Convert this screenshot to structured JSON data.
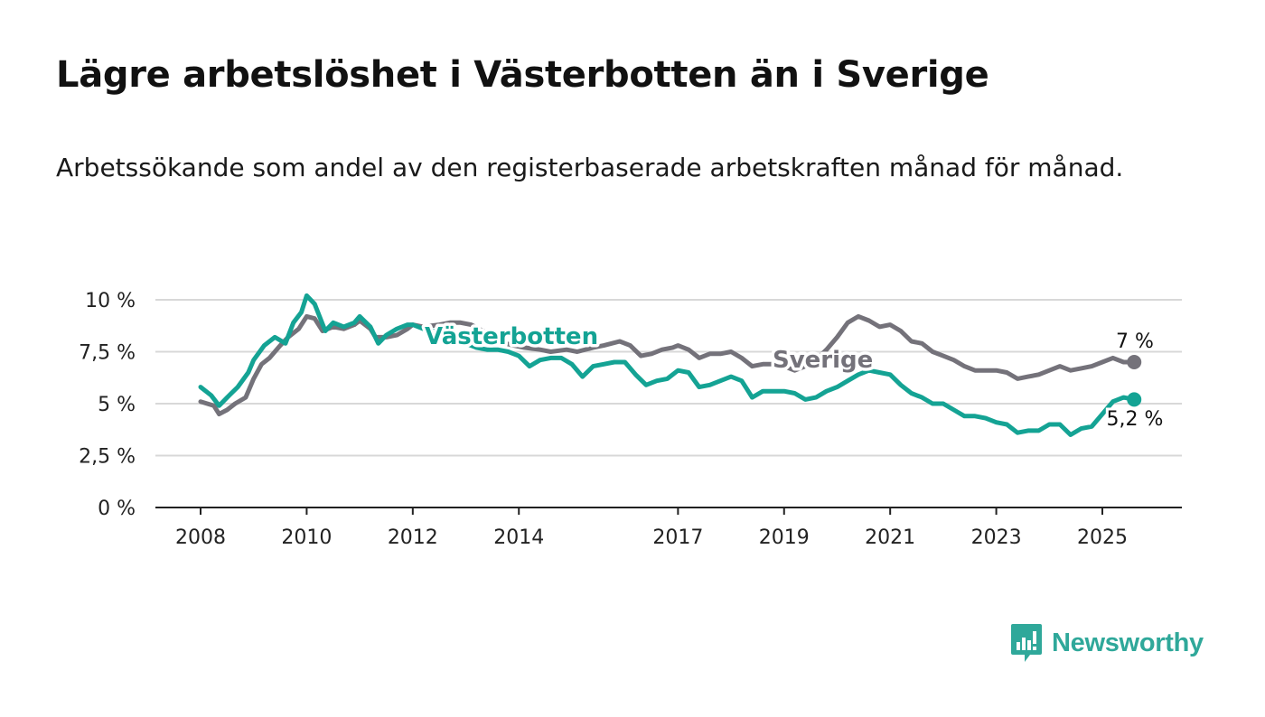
{
  "title": "Lägre arbetslöshet i Västerbotten än i Sverige",
  "subtitle": "Arbetssökande som andel av den registerbaserade arbetskraften månad för månad.",
  "brand": {
    "name": "Newsworthy",
    "icon": "bar-chart-speech-bubble-icon",
    "color": "#2fa89a"
  },
  "colors": {
    "vasterbotten": "#14a394",
    "sverige": "#74727a",
    "grid": "#d8d8d8",
    "axis": "#222222"
  },
  "chart_data": {
    "type": "line",
    "ylim": [
      0,
      10
    ],
    "xlim": [
      2008,
      2025.7
    ],
    "y_ticks": [
      {
        "value": 0,
        "label": "0 %"
      },
      {
        "value": 2.5,
        "label": "2,5 %"
      },
      {
        "value": 5,
        "label": "5 %"
      },
      {
        "value": 7.5,
        "label": "7,5 %"
      },
      {
        "value": 10,
        "label": "10 %"
      }
    ],
    "x_ticks": [
      {
        "value": 2008,
        "label": "2008"
      },
      {
        "value": 2010,
        "label": "2010"
      },
      {
        "value": 2012,
        "label": "2012"
      },
      {
        "value": 2014,
        "label": "2014"
      },
      {
        "value": 2017,
        "label": "2017"
      },
      {
        "value": 2019,
        "label": "2019"
      },
      {
        "value": 2021,
        "label": "2021"
      },
      {
        "value": 2023,
        "label": "2023"
      },
      {
        "value": 2025,
        "label": "2025"
      }
    ],
    "grid": true,
    "series": [
      {
        "name": "Sverige",
        "end_label": "7 %",
        "x": [
          2008.0,
          2008.25,
          2008.35,
          2008.5,
          2008.65,
          2008.85,
          2009.0,
          2009.15,
          2009.3,
          2009.5,
          2009.65,
          2009.85,
          2009.95,
          2010.0,
          2010.15,
          2010.3,
          2010.5,
          2010.7,
          2010.9,
          2011.0,
          2011.2,
          2011.3,
          2011.5,
          2011.7,
          2011.9,
          2012.0,
          2012.2,
          2012.5,
          2012.7,
          2012.9,
          2013.1,
          2013.4,
          2013.6,
          2013.9,
          2014.1,
          2014.4,
          2014.6,
          2014.9,
          2015.1,
          2015.4,
          2015.6,
          2015.9,
          2016.1,
          2016.3,
          2016.5,
          2016.7,
          2016.9,
          2017.0,
          2017.2,
          2017.4,
          2017.6,
          2017.8,
          2018.0,
          2018.2,
          2018.4,
          2018.6,
          2018.8,
          2019.0,
          2019.2,
          2019.4,
          2019.6,
          2019.8,
          2020.0,
          2020.2,
          2020.4,
          2020.6,
          2020.8,
          2021.0,
          2021.2,
          2021.4,
          2021.6,
          2021.8,
          2022.0,
          2022.2,
          2022.4,
          2022.6,
          2022.8,
          2023.0,
          2023.2,
          2023.4,
          2023.6,
          2023.8,
          2024.0,
          2024.2,
          2024.4,
          2024.6,
          2024.8,
          2025.0,
          2025.2,
          2025.4,
          2025.6
        ],
        "y": [
          5.1,
          4.9,
          4.5,
          4.7,
          5.0,
          5.3,
          6.2,
          6.9,
          7.2,
          7.8,
          8.2,
          8.6,
          9.0,
          9.2,
          9.1,
          8.5,
          8.7,
          8.6,
          8.8,
          9.0,
          8.6,
          8.2,
          8.2,
          8.3,
          8.6,
          8.8,
          8.7,
          8.8,
          8.9,
          8.9,
          8.8,
          8.4,
          8.0,
          7.8,
          7.7,
          7.6,
          7.5,
          7.6,
          7.5,
          7.7,
          7.8,
          8.0,
          7.8,
          7.3,
          7.4,
          7.6,
          7.7,
          7.8,
          7.6,
          7.2,
          7.4,
          7.4,
          7.5,
          7.2,
          6.8,
          6.9,
          6.9,
          6.8,
          6.6,
          6.8,
          7.1,
          7.6,
          8.2,
          8.9,
          9.2,
          9.0,
          8.7,
          8.8,
          8.5,
          8.0,
          7.9,
          7.5,
          7.3,
          7.1,
          6.8,
          6.6,
          6.6,
          6.6,
          6.5,
          6.2,
          6.3,
          6.4,
          6.6,
          6.8,
          6.6,
          6.7,
          6.8,
          7.0,
          7.2,
          7.0,
          7.0
        ]
      },
      {
        "name": "Västerbotten",
        "end_label": "5,2 %",
        "x": [
          2008.0,
          2008.2,
          2008.35,
          2008.5,
          2008.7,
          2008.9,
          2009.0,
          2009.2,
          2009.4,
          2009.6,
          2009.75,
          2009.9,
          2010.0,
          2010.15,
          2010.35,
          2010.5,
          2010.7,
          2010.9,
          2011.0,
          2011.2,
          2011.35,
          2011.5,
          2011.7,
          2011.9,
          2012.0,
          2012.2,
          2012.4,
          2012.6,
          2012.8,
          2013.0,
          2013.2,
          2013.4,
          2013.6,
          2013.8,
          2014.0,
          2014.2,
          2014.4,
          2014.6,
          2014.8,
          2015.0,
          2015.2,
          2015.4,
          2015.6,
          2015.8,
          2016.0,
          2016.2,
          2016.4,
          2016.6,
          2016.8,
          2017.0,
          2017.2,
          2017.4,
          2017.6,
          2017.8,
          2018.0,
          2018.2,
          2018.4,
          2018.6,
          2018.8,
          2019.0,
          2019.2,
          2019.4,
          2019.6,
          2019.8,
          2020.0,
          2020.2,
          2020.4,
          2020.6,
          2020.8,
          2021.0,
          2021.2,
          2021.4,
          2021.6,
          2021.8,
          2022.0,
          2022.2,
          2022.4,
          2022.6,
          2022.8,
          2023.0,
          2023.2,
          2023.4,
          2023.6,
          2023.8,
          2024.0,
          2024.2,
          2024.4,
          2024.6,
          2024.8,
          2025.0,
          2025.2,
          2025.4,
          2025.6
        ],
        "y": [
          5.8,
          5.4,
          4.9,
          5.3,
          5.8,
          6.5,
          7.1,
          7.8,
          8.2,
          7.9,
          8.9,
          9.4,
          10.2,
          9.8,
          8.5,
          8.9,
          8.7,
          8.9,
          9.2,
          8.7,
          7.9,
          8.3,
          8.6,
          8.8,
          8.8,
          8.6,
          8.5,
          8.3,
          8.1,
          7.9,
          7.7,
          7.6,
          7.6,
          7.5,
          7.3,
          6.8,
          7.1,
          7.2,
          7.2,
          6.9,
          6.3,
          6.8,
          6.9,
          7.0,
          7.0,
          6.4,
          5.9,
          6.1,
          6.2,
          6.6,
          6.5,
          5.8,
          5.9,
          6.1,
          6.3,
          6.1,
          5.3,
          5.6,
          5.6,
          5.6,
          5.5,
          5.2,
          5.3,
          5.6,
          5.8,
          6.1,
          6.4,
          6.6,
          6.5,
          6.4,
          5.9,
          5.5,
          5.3,
          5.0,
          5.0,
          4.7,
          4.4,
          4.4,
          4.3,
          4.1,
          4.0,
          3.6,
          3.7,
          3.7,
          4.0,
          4.0,
          3.5,
          3.8,
          3.9,
          4.5,
          5.1,
          5.3,
          5.2
        ]
      }
    ]
  }
}
